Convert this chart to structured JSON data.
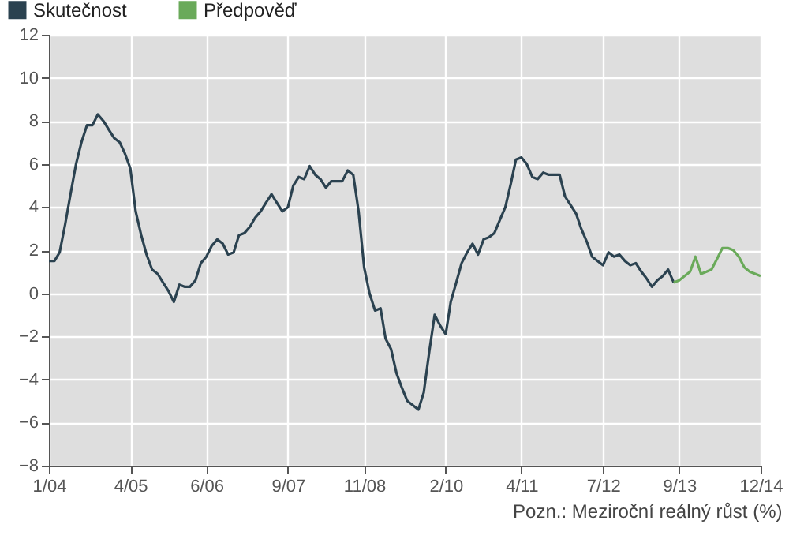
{
  "chart_data": {
    "type": "line",
    "annotations": [
      "Pozn.: Meziroční reálný růst (%)"
    ],
    "series": [
      {
        "name": "Skutečnost",
        "color": "#2b4250",
        "x": [
          "2004-01",
          "2004-02",
          "2004-03",
          "2004-04",
          "2004-05",
          "2004-06",
          "2004-07",
          "2004-08",
          "2004-09",
          "2004-10",
          "2004-11",
          "2004-12",
          "2005-01",
          "2005-02",
          "2005-03",
          "2005-04",
          "2005-05",
          "2005-06",
          "2005-07",
          "2005-08",
          "2005-09",
          "2005-10",
          "2005-11",
          "2005-12",
          "2006-01",
          "2006-02",
          "2006-03",
          "2006-04",
          "2006-05",
          "2006-06",
          "2006-07",
          "2006-08",
          "2006-09",
          "2006-10",
          "2006-11",
          "2006-12",
          "2007-01",
          "2007-02",
          "2007-03",
          "2007-04",
          "2007-05",
          "2007-06",
          "2007-07",
          "2007-08",
          "2007-09",
          "2007-10",
          "2007-11",
          "2007-12",
          "2008-01",
          "2008-02",
          "2008-03",
          "2008-04",
          "2008-05",
          "2008-06",
          "2008-07",
          "2008-08",
          "2008-09",
          "2008-10",
          "2008-11",
          "2008-12",
          "2009-01",
          "2009-02",
          "2009-03",
          "2009-04",
          "2009-05",
          "2009-06",
          "2009-07",
          "2009-08",
          "2009-09",
          "2009-10",
          "2009-11",
          "2009-12",
          "2010-01",
          "2010-02",
          "2010-03",
          "2010-04",
          "2010-05",
          "2010-06",
          "2010-07",
          "2010-08",
          "2010-09",
          "2010-10",
          "2010-11",
          "2010-12",
          "2011-01",
          "2011-02",
          "2011-03",
          "2011-04",
          "2011-05",
          "2011-06",
          "2011-07",
          "2011-08",
          "2011-09",
          "2011-10",
          "2011-11",
          "2011-12",
          "2012-01",
          "2012-02",
          "2012-03",
          "2012-04",
          "2012-05",
          "2012-06",
          "2012-07",
          "2012-08",
          "2012-09",
          "2012-10",
          "2012-11",
          "2012-12",
          "2013-01",
          "2013-02",
          "2013-03",
          "2013-04",
          "2013-05",
          "2013-06",
          "2013-07",
          "2013-08"
        ],
        "values": [
          1.5,
          1.5,
          1.9,
          3.2,
          4.6,
          6.0,
          7.0,
          7.8,
          7.8,
          8.3,
          8.0,
          7.6,
          7.2,
          7.0,
          6.5,
          5.8,
          3.8,
          2.7,
          1.8,
          1.1,
          0.9,
          0.5,
          0.1,
          -0.4,
          0.4,
          0.3,
          0.3,
          0.6,
          1.4,
          1.7,
          2.2,
          2.5,
          2.3,
          1.8,
          1.9,
          2.7,
          2.8,
          3.1,
          3.5,
          3.8,
          4.2,
          4.6,
          4.2,
          3.8,
          4.0,
          5.0,
          5.4,
          5.3,
          5.9,
          5.5,
          5.3,
          4.9,
          5.2,
          5.2,
          5.2,
          5.7,
          5.5,
          3.8,
          1.2,
          0.0,
          -0.8,
          -0.7,
          -2.1,
          -2.6,
          -3.7,
          -4.4,
          -5.0,
          -5.2,
          -5.4,
          -4.6,
          -2.7,
          -1.0,
          -1.5,
          -1.9,
          -0.4,
          0.5,
          1.4,
          1.9,
          2.3,
          1.8,
          2.5,
          2.6,
          2.8,
          3.4,
          4.0,
          5.1,
          6.2,
          6.3,
          6.0,
          5.4,
          5.3,
          5.6,
          5.5,
          5.5,
          5.5,
          4.5,
          4.1,
          3.7,
          3.0,
          2.4,
          1.7,
          1.5,
          1.3,
          1.9,
          1.7,
          1.8,
          1.5,
          1.3,
          1.4,
          1.0,
          0.7,
          0.3,
          0.6,
          0.8,
          1.1,
          0.5
        ]
      },
      {
        "name": "Předpověď",
        "color": "#6aaa5a",
        "x": [
          "2013-08",
          "2013-09",
          "2013-10",
          "2013-11",
          "2013-12",
          "2014-01",
          "2014-02",
          "2014-03",
          "2014-04",
          "2014-05",
          "2014-06",
          "2014-07",
          "2014-08",
          "2014-09",
          "2014-10",
          "2014-11",
          "2014-12"
        ],
        "values": [
          0.5,
          0.6,
          0.8,
          1.0,
          1.7,
          0.9,
          1.0,
          1.1,
          1.6,
          2.1,
          2.1,
          2.0,
          1.7,
          1.2,
          1.0,
          0.9,
          0.8
        ]
      }
    ],
    "xlim": [
      "2004-01",
      "2014-12"
    ],
    "xticks": [
      {
        "value": "2004-01",
        "label": "1/04"
      },
      {
        "value": "2005-04",
        "label": "4/05"
      },
      {
        "value": "2006-06",
        "label": "6/06"
      },
      {
        "value": "2007-09",
        "label": "9/07"
      },
      {
        "value": "2008-11",
        "label": "11/08"
      },
      {
        "value": "2010-02",
        "label": "2/10"
      },
      {
        "value": "2011-04",
        "label": "4/11"
      },
      {
        "value": "2012-07",
        "label": "7/12"
      },
      {
        "value": "2013-09",
        "label": "9/13"
      },
      {
        "value": "2014-12",
        "label": "12/14"
      }
    ],
    "ylim": [
      -8,
      12
    ],
    "yticks": [
      -8,
      -6,
      -4,
      -2,
      0,
      2,
      4,
      6,
      8,
      10,
      12
    ],
    "grid": true,
    "legend": "top left",
    "marker": "none",
    "line_style": "solid"
  }
}
